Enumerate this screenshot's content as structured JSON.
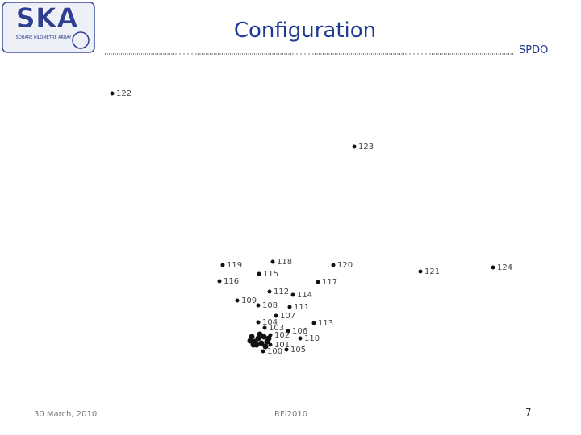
{
  "header": {
    "logo": "SKA",
    "logo_subtitle": "SQUARE KILOMETRE ARRAY",
    "title": "Configuration",
    "org": "SPDO"
  },
  "nodes": [
    {
      "label": "122"
    },
    {
      "label": "123"
    },
    {
      "label": "119"
    },
    {
      "label": "118"
    },
    {
      "label": "120"
    },
    {
      "label": "121"
    },
    {
      "label": "124"
    },
    {
      "label": "116"
    },
    {
      "label": "115"
    },
    {
      "label": "117"
    },
    {
      "label": "112"
    },
    {
      "label": "114"
    },
    {
      "label": "109"
    },
    {
      "label": "108"
    },
    {
      "label": "111"
    },
    {
      "label": "107"
    },
    {
      "label": "104"
    },
    {
      "label": "113"
    },
    {
      "label": "103"
    },
    {
      "label": "106"
    },
    {
      "label": "102"
    },
    {
      "label": "110"
    },
    {
      "label": "101"
    },
    {
      "label": "105"
    },
    {
      "label": "100"
    }
  ],
  "footer": {
    "date": "30 March, 2010",
    "event": "RFI2010",
    "page": "7"
  }
}
